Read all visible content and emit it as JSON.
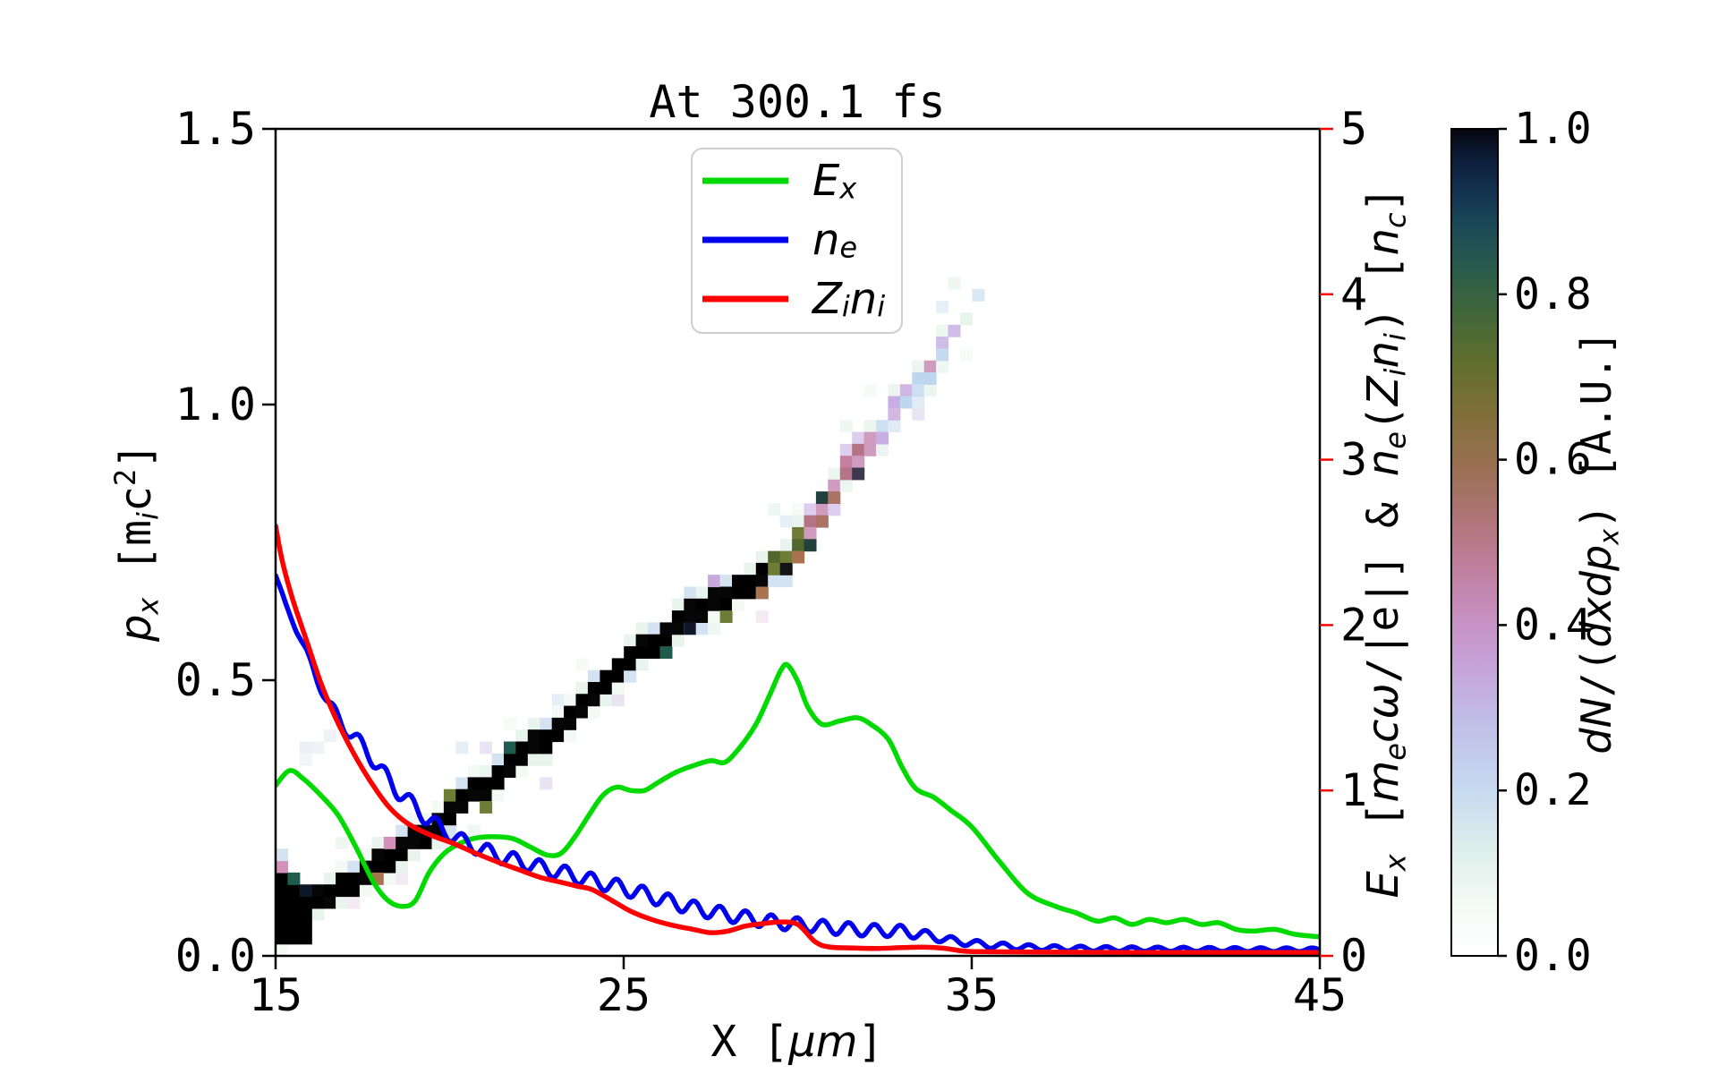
{
  "chart_data": {
    "type": "heatmap+lines",
    "title": "At 300.1 fs",
    "x_axis": {
      "label": "X [μm]",
      "range": [
        15,
        45
      ],
      "tick_values": [
        15,
        25,
        35,
        45
      ],
      "tick_labels": [
        "15",
        "25",
        "35",
        "45"
      ]
    },
    "y_axis_left": {
      "label": "p_x [m_i c^2]",
      "range": [
        0,
        1.5
      ],
      "tick_values": [
        0,
        0.5,
        1.0,
        1.5
      ],
      "tick_labels": [
        "0.0",
        "0.5",
        "1.0",
        "1.5"
      ]
    },
    "y_axis_right": {
      "label": "E_x [m_e cω/|e|] & n_e(Z_i n_i) [n_c]",
      "color": "#ff0000",
      "range": [
        0,
        5
      ],
      "tick_values": [
        0,
        1,
        2,
        3,
        4,
        5
      ],
      "tick_labels": [
        "0",
        "1",
        "2",
        "3",
        "4",
        "5"
      ]
    },
    "colorbar": {
      "label": "dN/(dxdp_x) [A.U.]",
      "range": [
        0,
        1
      ],
      "tick_values": [
        0,
        0.2,
        0.4,
        0.6,
        0.8,
        1.0
      ],
      "tick_labels": [
        "0.0",
        "0.2",
        "0.4",
        "0.6",
        "0.8",
        "1.0"
      ],
      "gradient_stops": [
        [
          0,
          "#ffffff"
        ],
        [
          0.06,
          "#f4faf6"
        ],
        [
          0.13,
          "#ddeeea"
        ],
        [
          0.2,
          "#c6daf0"
        ],
        [
          0.28,
          "#c0bfe8"
        ],
        [
          0.35,
          "#c6a3da"
        ],
        [
          0.42,
          "#c68cbb"
        ],
        [
          0.48,
          "#bd7d97"
        ],
        [
          0.54,
          "#ab7370"
        ],
        [
          0.6,
          "#97704f"
        ],
        [
          0.66,
          "#7d6f38"
        ],
        [
          0.72,
          "#5f6e2e"
        ],
        [
          0.78,
          "#40663a"
        ],
        [
          0.83,
          "#2a5c4c"
        ],
        [
          0.88,
          "#1c4a57"
        ],
        [
          0.92,
          "#143552"
        ],
        [
          0.96,
          "#0d1f3c"
        ],
        [
          1,
          "#05060e"
        ]
      ]
    },
    "series": [
      {
        "name": "E_x",
        "color": "#00da00",
        "axis": "right",
        "points": [
          [
            15,
            1.03
          ],
          [
            15.4,
            1.12
          ],
          [
            15.8,
            1.07
          ],
          [
            16.3,
            0.97
          ],
          [
            16.8,
            0.85
          ],
          [
            17.3,
            0.66
          ],
          [
            17.8,
            0.45
          ],
          [
            18.2,
            0.34
          ],
          [
            18.6,
            0.3
          ],
          [
            19.0,
            0.33
          ],
          [
            19.4,
            0.5
          ],
          [
            19.8,
            0.61
          ],
          [
            20.2,
            0.67
          ],
          [
            20.7,
            0.71
          ],
          [
            21.2,
            0.72
          ],
          [
            21.8,
            0.71
          ],
          [
            22.3,
            0.66
          ],
          [
            22.8,
            0.61
          ],
          [
            23.2,
            0.62
          ],
          [
            23.6,
            0.72
          ],
          [
            24.0,
            0.85
          ],
          [
            24.4,
            0.97
          ],
          [
            24.8,
            1.02
          ],
          [
            25.2,
            1.0
          ],
          [
            25.6,
            1.0
          ],
          [
            26.0,
            1.05
          ],
          [
            26.5,
            1.11
          ],
          [
            27.0,
            1.15
          ],
          [
            27.5,
            1.18
          ],
          [
            27.9,
            1.17
          ],
          [
            28.3,
            1.25
          ],
          [
            28.8,
            1.4
          ],
          [
            29.2,
            1.58
          ],
          [
            29.5,
            1.72
          ],
          [
            29.7,
            1.76
          ],
          [
            30.0,
            1.66
          ],
          [
            30.3,
            1.5
          ],
          [
            30.7,
            1.4
          ],
          [
            31.2,
            1.42
          ],
          [
            31.7,
            1.44
          ],
          [
            32.1,
            1.4
          ],
          [
            32.6,
            1.31
          ],
          [
            33.0,
            1.14
          ],
          [
            33.4,
            1.01
          ],
          [
            33.9,
            0.96
          ],
          [
            34.4,
            0.88
          ],
          [
            35.0,
            0.78
          ],
          [
            35.8,
            0.57
          ],
          [
            36.6,
            0.38
          ],
          [
            37.4,
            0.3
          ],
          [
            38.0,
            0.26
          ],
          [
            38.6,
            0.21
          ],
          [
            39.1,
            0.23
          ],
          [
            39.6,
            0.19
          ],
          [
            40.1,
            0.22
          ],
          [
            40.6,
            0.2
          ],
          [
            41.1,
            0.22
          ],
          [
            41.6,
            0.19
          ],
          [
            42.1,
            0.2
          ],
          [
            42.6,
            0.16
          ],
          [
            43.1,
            0.15
          ],
          [
            43.7,
            0.16
          ],
          [
            44.3,
            0.13
          ],
          [
            45,
            0.115
          ]
        ]
      },
      {
        "name": "n_e",
        "color": "#0000ee",
        "axis": "right",
        "points": [
          [
            15,
            2.3
          ],
          [
            15.3,
            2.12
          ],
          [
            15.6,
            1.97
          ],
          [
            15.9,
            1.83
          ],
          [
            16.2,
            1.67
          ],
          [
            16.5,
            1.53
          ],
          [
            16.9,
            1.41
          ],
          [
            17.3,
            1.31
          ],
          [
            17.7,
            1.22
          ],
          [
            18.1,
            1.1
          ],
          [
            18.5,
            1.0
          ],
          [
            18.9,
            0.92
          ],
          [
            19.3,
            0.84
          ],
          [
            19.8,
            0.76
          ],
          [
            20.3,
            0.7
          ],
          [
            20.9,
            0.645
          ],
          [
            21.5,
            0.6
          ],
          [
            22.1,
            0.565
          ],
          [
            22.7,
            0.53
          ],
          [
            23.3,
            0.5
          ],
          [
            24.0,
            0.46
          ],
          [
            24.8,
            0.42
          ],
          [
            25.5,
            0.38
          ],
          [
            26.2,
            0.335
          ],
          [
            27.0,
            0.29
          ],
          [
            27.7,
            0.26
          ],
          [
            28.5,
            0.23
          ],
          [
            29.3,
            0.205
          ],
          [
            30.0,
            0.19
          ],
          [
            31.0,
            0.17
          ],
          [
            32.0,
            0.155
          ],
          [
            33.0,
            0.15
          ],
          [
            33.7,
            0.125
          ],
          [
            34.5,
            0.09
          ],
          [
            35.5,
            0.065
          ],
          [
            36.5,
            0.052
          ],
          [
            37.5,
            0.046
          ],
          [
            39,
            0.042
          ],
          [
            41,
            0.04
          ],
          [
            43,
            0.038
          ],
          [
            45,
            0.037
          ]
        ],
        "wiggle": {
          "wavelength_um": 0.74,
          "amplitude": [
            [
              15,
              0.004
            ],
            [
              16,
              0.02
            ],
            [
              17,
              0.045
            ],
            [
              18,
              0.05
            ],
            [
              20,
              0.045
            ],
            [
              23,
              0.045
            ],
            [
              26,
              0.045
            ],
            [
              29,
              0.042
            ],
            [
              31,
              0.04
            ],
            [
              33,
              0.035
            ],
            [
              34,
              0.025
            ],
            [
              35,
              0.02
            ],
            [
              37,
              0.016
            ],
            [
              40,
              0.013
            ],
            [
              45,
              0.011
            ]
          ]
        }
      },
      {
        "name": "Z_i n_i",
        "color": "#ff0000",
        "axis": "right",
        "points": [
          [
            15,
            2.6
          ],
          [
            15.2,
            2.38
          ],
          [
            15.5,
            2.15
          ],
          [
            15.9,
            1.9
          ],
          [
            16.3,
            1.65
          ],
          [
            16.7,
            1.45
          ],
          [
            17.1,
            1.28
          ],
          [
            17.5,
            1.13
          ],
          [
            17.9,
            1.0
          ],
          [
            18.3,
            0.89
          ],
          [
            18.8,
            0.8
          ],
          [
            19.4,
            0.735
          ],
          [
            20.1,
            0.68
          ],
          [
            20.7,
            0.625
          ],
          [
            21.35,
            0.57
          ],
          [
            22.0,
            0.52
          ],
          [
            22.6,
            0.475
          ],
          [
            23.2,
            0.445
          ],
          [
            23.7,
            0.42
          ],
          [
            24.1,
            0.4
          ],
          [
            24.7,
            0.33
          ],
          [
            25.2,
            0.27
          ],
          [
            25.8,
            0.22
          ],
          [
            26.4,
            0.185
          ],
          [
            27.0,
            0.16
          ],
          [
            27.5,
            0.14
          ],
          [
            28.0,
            0.15
          ],
          [
            28.5,
            0.18
          ],
          [
            29.0,
            0.195
          ],
          [
            29.5,
            0.205
          ],
          [
            30.0,
            0.19
          ],
          [
            30.5,
            0.085
          ],
          [
            30.9,
            0.054
          ],
          [
            31.5,
            0.048
          ],
          [
            32.3,
            0.045
          ],
          [
            33.0,
            0.05
          ],
          [
            33.6,
            0.053
          ],
          [
            34.2,
            0.046
          ],
          [
            34.8,
            0.028
          ],
          [
            35.5,
            0.025
          ],
          [
            37,
            0.023
          ],
          [
            39,
            0.021
          ],
          [
            41,
            0.02
          ],
          [
            43,
            0.02
          ],
          [
            45,
            0.02
          ]
        ]
      }
    ],
    "heatmap": {
      "x_start": 15,
      "x_end": 35.3,
      "cell_dx": 0.345,
      "cell_dp": 0.0216,
      "centerline": [
        [
          15,
          0.055
        ],
        [
          16,
          0.09
        ],
        [
          17,
          0.125
        ],
        [
          18,
          0.165
        ],
        [
          19,
          0.21
        ],
        [
          20,
          0.26
        ],
        [
          21,
          0.31
        ],
        [
          22,
          0.36
        ],
        [
          23,
          0.41
        ],
        [
          24,
          0.47
        ],
        [
          25,
          0.525
        ],
        [
          26,
          0.575
        ],
        [
          27,
          0.625
        ],
        [
          28,
          0.66
        ],
        [
          29,
          0.69
        ],
        [
          29.8,
          0.73
        ],
        [
          30.5,
          0.79
        ],
        [
          31.2,
          0.86
        ],
        [
          32,
          0.93
        ],
        [
          33,
          1.0
        ],
        [
          34,
          1.08
        ],
        [
          34.8,
          1.15
        ],
        [
          35.3,
          1.205
        ]
      ],
      "start_blob": {
        "x_end": 15.9,
        "p_bottom": 0.012,
        "p_top": 0.135
      },
      "segments": [
        {
          "from": 15,
          "to": 29.0,
          "core": [
            "#000000",
            "#000000",
            "#060606"
          ],
          "edge": [
            "#e9f4ef",
            "#d3e3f2",
            "#f3f9f5"
          ],
          "speckle": [
            "#d490b8",
            "#6f7c36",
            "#1f5c4e",
            "#a9734f",
            "#c6aade",
            "#24466a",
            "#101828"
          ],
          "speckle_rate": 0.3
        },
        {
          "from": 29.0,
          "to": 30.3,
          "core": [
            "#50682e",
            "#2e5c45",
            "#141414",
            "#6f7c36",
            "#1f4a50"
          ],
          "edge": [
            "#e9f4ef",
            "#d3e3f2"
          ],
          "speckle": [
            "#c67f9e",
            "#a9734f",
            "#d490b8"
          ],
          "speckle_rate": 0.5
        },
        {
          "from": 30.3,
          "to": 32.2,
          "core": [
            "#c67f9e",
            "#b47486",
            "#c691c2",
            "#ab7266",
            "#cf9bbe"
          ],
          "edge": [
            "#ecf5f0",
            "#ddcdee"
          ],
          "speckle": [
            "#3c3850",
            "#6f7c36",
            "#23413c"
          ],
          "speckle_rate": 0.35
        },
        {
          "from": 32.2,
          "to": 33.9,
          "core": [
            "#c9aee6",
            "#cf9bbe",
            "#bed6ee",
            "#d2b6e4",
            "#cde0f2"
          ],
          "edge": [
            "#ecf5f0",
            "#e0ebf6"
          ],
          "speckle": [
            "#9b86c2"
          ],
          "speckle_rate": 0.2
        },
        {
          "from": 33.9,
          "to": 35.3,
          "core": [
            "#c5daee",
            "#cfbce8",
            "#dff0f4",
            "#e6f4ee",
            "#d8e8f4"
          ],
          "edge": [
            "#eef7f2"
          ],
          "speckle": [],
          "speckle_rate": 0
        }
      ],
      "noise": {
        "colors": [
          "#eef7f2",
          "#e6eff8",
          "#f3eaf3",
          "#e9e4f3",
          "#f6fbf8"
        ],
        "rate": 0.5
      },
      "extra_cells": [
        [
          15.55,
          0.375,
          "#eceff4"
        ],
        [
          15.9,
          0.36,
          "#f0f3f6"
        ],
        [
          16.25,
          0.395,
          "#eef2f6"
        ],
        [
          15.6,
          0.345,
          "#f2f5f8"
        ]
      ]
    }
  },
  "legend": {
    "items": [
      {
        "label": "E_x",
        "color": "#00da00"
      },
      {
        "label": "n_e",
        "color": "#0000ee"
      },
      {
        "label": "Z_i n_i",
        "color": "#ff0000"
      }
    ],
    "border_color": "#cfcfcf"
  },
  "rich_labels": {
    "xlabel": [
      {
        "t": "X [",
        "s": "m"
      },
      {
        "t": "μm",
        "s": "i"
      },
      {
        "t": "]",
        "s": "m"
      }
    ],
    "ylabel_left": [
      {
        "t": "p",
        "s": "i"
      },
      {
        "t": "x",
        "s": "isub"
      },
      {
        "t": " [m",
        "s": "m"
      },
      {
        "t": "i",
        "s": "isub"
      },
      {
        "t": "c",
        "s": "m"
      },
      {
        "t": "2",
        "s": "msup"
      },
      {
        "t": "]",
        "s": "m"
      }
    ],
    "ylabel_right": [
      {
        "t": "E",
        "s": "i"
      },
      {
        "t": "x",
        "s": "isub"
      },
      {
        "t": " [",
        "s": "m"
      },
      {
        "t": "m",
        "s": "i"
      },
      {
        "t": "e",
        "s": "isub"
      },
      {
        "t": "cω",
        "s": "i"
      },
      {
        "t": "/|e|] & ",
        "s": "m"
      },
      {
        "t": "n",
        "s": "i"
      },
      {
        "t": "e",
        "s": "isub"
      },
      {
        "t": "(",
        "s": "m"
      },
      {
        "t": "Z",
        "s": "i"
      },
      {
        "t": "i",
        "s": "isub"
      },
      {
        "t": "n",
        "s": "i"
      },
      {
        "t": "i",
        "s": "isub"
      },
      {
        "t": ") [",
        "s": "m"
      },
      {
        "t": "n",
        "s": "i"
      },
      {
        "t": "c",
        "s": "isub"
      },
      {
        "t": "]",
        "s": "m"
      }
    ],
    "cbar_label": [
      {
        "t": "dN",
        "s": "i"
      },
      {
        "t": "/(",
        "s": "m"
      },
      {
        "t": "dxdp",
        "s": "i"
      },
      {
        "t": "x",
        "s": "isub"
      },
      {
        "t": ")",
        "s": "m"
      },
      {
        "t": " [A.U.]",
        "s": "m"
      }
    ],
    "legend_items": [
      [
        {
          "t": "E",
          "s": "i"
        },
        {
          "t": "x",
          "s": "isub"
        }
      ],
      [
        {
          "t": "n",
          "s": "i"
        },
        {
          "t": "e",
          "s": "isub"
        }
      ],
      [
        {
          "t": "Z",
          "s": "i"
        },
        {
          "t": "i",
          "s": "isub"
        },
        {
          "t": "n",
          "s": "i"
        },
        {
          "t": "i",
          "s": "isub"
        }
      ]
    ]
  },
  "frame": {
    "color": "#000000"
  }
}
